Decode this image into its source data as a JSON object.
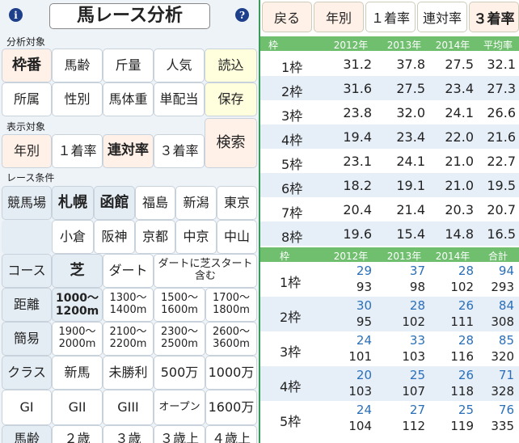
{
  "left": {
    "title": "馬レース分析",
    "info_icon": "info-icon",
    "help_icon": "help-icon",
    "section_target": "分析対象",
    "target_buttons": [
      "枠番",
      "馬齢",
      "斤量",
      "人気",
      "所属",
      "性別",
      "馬体重",
      "単配当"
    ],
    "load_label": "読込",
    "save_label": "保存",
    "section_display": "表示対象",
    "display_buttons": [
      "年別",
      "１着率",
      "連対率",
      "３着率"
    ],
    "search_label": "検索",
    "section_race": "レース条件",
    "racecourse_label": "競馬場",
    "racecourses": [
      "札幌",
      "函館",
      "福島",
      "新潟",
      "東京",
      "小倉",
      "阪神",
      "京都",
      "中京",
      "中山"
    ],
    "course_label": "コース",
    "courses": [
      "芝",
      "ダート",
      "ダートに芝スタート含む"
    ],
    "distance_label": "距離",
    "distances": [
      "1000〜1200m",
      "1300〜1400m",
      "1500〜1600m",
      "1700〜1800m"
    ],
    "simple_label": "簡易",
    "distances2": [
      "1900〜2000m",
      "2100〜2200m",
      "2300〜2500m",
      "2600〜3600m"
    ],
    "class_label": "クラス",
    "classes": [
      "新馬",
      "未勝利",
      "500万",
      "1000万"
    ],
    "grade_row": [
      "GI",
      "GII",
      "GIII",
      "オープン",
      "1600万"
    ],
    "age_label": "馬齢",
    "ages": [
      "２歳",
      "３歳",
      "３歳上",
      "４歳上"
    ]
  },
  "right": {
    "back_label": "戻る",
    "tabs": [
      "年別",
      "１着率",
      "連対率",
      "３着率"
    ],
    "table1": {
      "headers": [
        "枠",
        "2012年",
        "2013年",
        "2014年",
        "平均率"
      ],
      "rows": [
        [
          "1枠",
          "31.2",
          "37.8",
          "27.5",
          "32.1"
        ],
        [
          "2枠",
          "31.6",
          "27.5",
          "23.4",
          "27.3"
        ],
        [
          "3枠",
          "23.8",
          "32.0",
          "24.1",
          "26.6"
        ],
        [
          "4枠",
          "19.4",
          "23.4",
          "22.0",
          "21.6"
        ],
        [
          "5枠",
          "23.1",
          "24.1",
          "21.0",
          "22.7"
        ],
        [
          "6枠",
          "18.2",
          "19.1",
          "21.0",
          "19.5"
        ],
        [
          "7枠",
          "20.4",
          "21.4",
          "20.3",
          "20.7"
        ],
        [
          "8枠",
          "19.6",
          "15.4",
          "14.8",
          "16.5"
        ]
      ]
    },
    "table2": {
      "headers": [
        "枠",
        "2012年",
        "2013年",
        "2014年",
        "合計"
      ],
      "rows": [
        {
          "label": "1枠",
          "top": [
            "29",
            "37",
            "28",
            "94"
          ],
          "bottom": [
            "93",
            "98",
            "102",
            "293"
          ]
        },
        {
          "label": "2枠",
          "top": [
            "30",
            "28",
            "26",
            "84"
          ],
          "bottom": [
            "95",
            "102",
            "111",
            "308"
          ]
        },
        {
          "label": "3枠",
          "top": [
            "24",
            "33",
            "28",
            "85"
          ],
          "bottom": [
            "101",
            "103",
            "116",
            "320"
          ]
        },
        {
          "label": "4枠",
          "top": [
            "20",
            "25",
            "26",
            "71"
          ],
          "bottom": [
            "103",
            "107",
            "118",
            "328"
          ]
        },
        {
          "label": "5枠",
          "top": [
            "24",
            "27",
            "25",
            "76"
          ],
          "bottom": [
            "104",
            "112",
            "119",
            "335"
          ]
        }
      ]
    },
    "colors": {
      "accent_green": "#6fbf6f",
      "num_blue": "#2a6fb8",
      "row_alt": "#e6eef7"
    }
  }
}
